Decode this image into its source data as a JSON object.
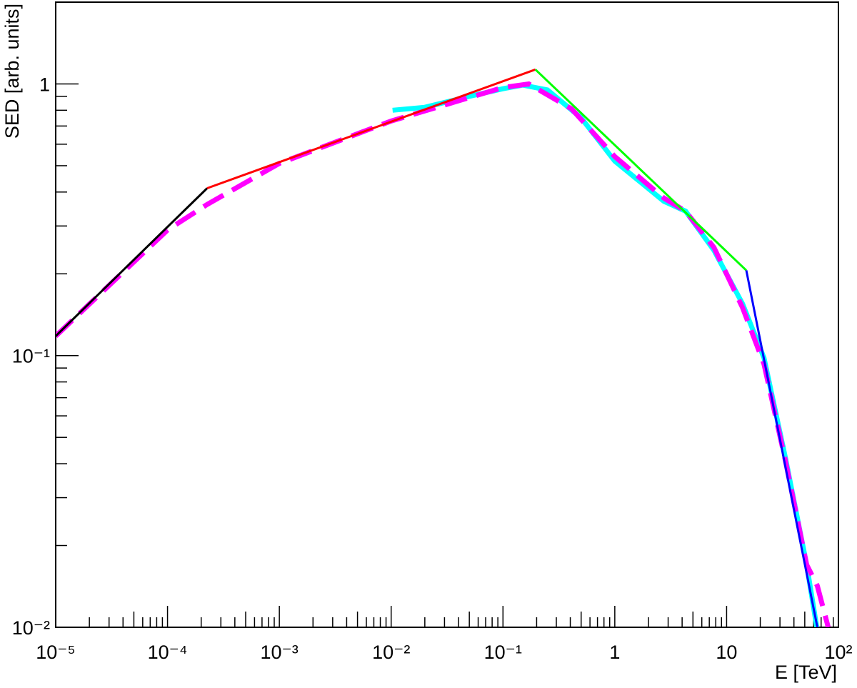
{
  "chart_data": {
    "type": "line",
    "log_x": true,
    "log_y": true,
    "x_label": "E [TeV]",
    "y_label": "SED [arb. units]",
    "xlim": [
      1e-05,
      100
    ],
    "ylim": [
      0.01,
      2
    ],
    "xticks": [
      {
        "value": 1e-05,
        "label": "10⁻⁵"
      },
      {
        "value": 0.0001,
        "label": "10⁻⁴"
      },
      {
        "value": 0.001,
        "label": "10⁻³"
      },
      {
        "value": 0.01,
        "label": "10⁻²"
      },
      {
        "value": 0.1,
        "label": "10⁻¹"
      },
      1,
      10,
      {
        "value": 100,
        "label": "10²"
      }
    ],
    "yticks": [
      {
        "value": 0.01,
        "label": "10⁻²"
      },
      {
        "value": 0.1,
        "label": "10⁻¹"
      },
      1
    ],
    "series": [
      {
        "color": "#000000",
        "style": "solid",
        "x": [
          1e-05,
          0.000226
        ],
        "values": [
          0.118,
          0.413
        ]
      },
      {
        "color": "#ff0000",
        "style": "solid",
        "x": [
          0.000226,
          0.195
        ],
        "values": [
          0.413,
          1.13
        ]
      },
      {
        "color": "#00ff00",
        "style": "solid",
        "x": [
          0.195,
          15
        ],
        "values": [
          1.13,
          0.206
        ]
      },
      {
        "color": "#0000ff",
        "style": "solid",
        "x": [
          15,
          64.8
        ],
        "values": [
          0.206,
          0.01
        ]
      },
      {
        "color": "#00ffff",
        "style": "thick",
        "x": [
          0.0103,
          0.02,
          0.05,
          0.1,
          0.15,
          0.25,
          0.5,
          1,
          2.75,
          4.3,
          7.7,
          13.9,
          21.6,
          33.6,
          52,
          64
        ],
        "values": [
          0.8,
          0.82,
          0.9,
          0.96,
          0.99,
          0.95,
          0.75,
          0.52,
          0.37,
          0.34,
          0.244,
          0.155,
          0.098,
          0.042,
          0.017,
          0.01
        ]
      },
      {
        "color": "#ff00ff",
        "style": "dashed",
        "x": [
          1e-05,
          0.0001,
          0.000226,
          0.001,
          0.01,
          0.1,
          0.17,
          0.41,
          1,
          2.75,
          4.3,
          7.7,
          13.9,
          21.6,
          33.6,
          52,
          64.8,
          81
        ],
        "values": [
          0.118,
          0.29,
          0.36,
          0.51,
          0.73,
          0.97,
          1.0,
          0.81,
          0.54,
          0.38,
          0.34,
          0.25,
          0.15,
          0.093,
          0.041,
          0.017,
          0.0142,
          0.01
        ]
      }
    ]
  }
}
